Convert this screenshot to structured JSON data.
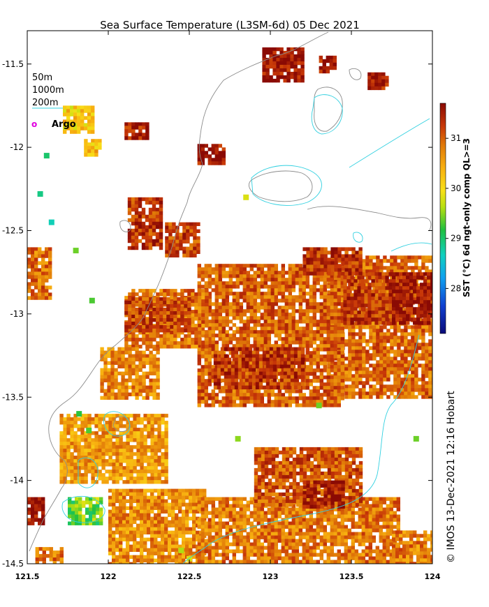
{
  "title": "Sea Surface Temperature (L3SM-6d) 05 Dec 2021",
  "credit": "© IMOS 13-Dec-2021 12:16 Hobart",
  "legend": {
    "items": [
      {
        "label": "50m"
      },
      {
        "label": "1000m"
      },
      {
        "label": "200m",
        "color": "#30d0e0"
      }
    ],
    "argo_label": "Argo",
    "argo_color": "#e000e0"
  },
  "colors": {
    "coast": "#8a8a8a",
    "contour_200m": "#30d0e0",
    "argo": "#e000e0"
  },
  "chart_data": {
    "type": "heatmap",
    "title": "Sea Surface Temperature (L3SM-6d) 05 Dec 2021",
    "xlim": [
      121.5,
      124
    ],
    "ylim": [
      -14.5,
      -11.3
    ],
    "x_ticks": [
      {
        "value": 121.5,
        "label": "121.5"
      },
      {
        "value": 122,
        "label": "122"
      },
      {
        "value": 122.5,
        "label": "122.5"
      },
      {
        "value": 123,
        "label": "123"
      },
      {
        "value": 123.5,
        "label": "123.5"
      },
      {
        "value": 124,
        "label": "124"
      }
    ],
    "y_ticks": [
      {
        "value": -11.5,
        "label": "-11.5"
      },
      {
        "value": -12,
        "label": "-12"
      },
      {
        "value": -12.5,
        "label": "-12.5"
      },
      {
        "value": -13,
        "label": "-13"
      },
      {
        "value": -13.5,
        "label": "-13.5"
      },
      {
        "value": -14,
        "label": "-14"
      },
      {
        "value": -14.5,
        "label": "-14.5"
      }
    ],
    "colorbar": {
      "label": "SST (°C) 6d ngt-only comp QL>=3",
      "range": [
        27.1,
        31.7
      ],
      "ticks": [
        {
          "value": 28,
          "label": "28"
        },
        {
          "value": 29,
          "label": "29"
        },
        {
          "value": 30,
          "label": "30"
        },
        {
          "value": 31,
          "label": "31"
        }
      ]
    },
    "patches": [
      {
        "lon": [
          123.35,
          124.0
        ],
        "lat": [
          -13.5,
          -12.65
        ],
        "sst": 30.95
      },
      {
        "lon": [
          122.55,
          123.45
        ],
        "lat": [
          -13.55,
          -12.7
        ],
        "sst": 31.0
      },
      {
        "lon": [
          122.1,
          122.6
        ],
        "lat": [
          -13.2,
          -12.85
        ],
        "sst": 30.9
      },
      {
        "lon": [
          121.95,
          122.3
        ],
        "lat": [
          -13.5,
          -13.2
        ],
        "sst": 30.75
      },
      {
        "lon": [
          122.1,
          122.5
        ],
        "lat": [
          -13.1,
          -12.9
        ],
        "sst": 31.2
      },
      {
        "lon": [
          122.65,
          123.2
        ],
        "lat": [
          -13.45,
          -13.2
        ],
        "sst": 31.3
      },
      {
        "lon": [
          123.45,
          123.75
        ],
        "lat": [
          -13.05,
          -12.75
        ],
        "sst": 31.3
      },
      {
        "lon": [
          123.75,
          124.0
        ],
        "lat": [
          -13.05,
          -12.75
        ],
        "sst": 31.6
      },
      {
        "lon": [
          121.7,
          122.35
        ],
        "lat": [
          -14.0,
          -13.6
        ],
        "sst": 30.6
      },
      {
        "lon": [
          122.0,
          122.6
        ],
        "lat": [
          -14.5,
          -14.05
        ],
        "sst": 30.7
      },
      {
        "lon": [
          122.55,
          123.8
        ],
        "lat": [
          -14.5,
          -14.1
        ],
        "sst": 30.85
      },
      {
        "lon": [
          123.75,
          124.0
        ],
        "lat": [
          -14.5,
          -14.3
        ],
        "sst": 30.8
      },
      {
        "lon": [
          122.9,
          123.55
        ],
        "lat": [
          -14.15,
          -13.8
        ],
        "sst": 31.1
      },
      {
        "lon": [
          123.2,
          123.45
        ],
        "lat": [
          -14.15,
          -14.0
        ],
        "sst": 31.45
      },
      {
        "lon": [
          121.75,
          121.95
        ],
        "lat": [
          -14.25,
          -14.1
        ],
        "sst": 29.4
      },
      {
        "lon": [
          121.5,
          121.6
        ],
        "lat": [
          -14.25,
          -14.1
        ],
        "sst": 31.6
      },
      {
        "lon": [
          121.72,
          121.9
        ],
        "lat": [
          -11.9,
          -11.75
        ],
        "sst": 30.15
      },
      {
        "lon": [
          121.85,
          121.95
        ],
        "lat": [
          -12.05,
          -11.95
        ],
        "sst": 30.3
      },
      {
        "lon": [
          122.12,
          122.32
        ],
        "lat": [
          -12.6,
          -12.3
        ],
        "sst": 31.3
      },
      {
        "lon": [
          121.5,
          121.65
        ],
        "lat": [
          -12.9,
          -12.6
        ],
        "sst": 30.9
      },
      {
        "lon": [
          122.35,
          122.55
        ],
        "lat": [
          -12.65,
          -12.45
        ],
        "sst": 31.2
      },
      {
        "lon": [
          122.55,
          122.72
        ],
        "lat": [
          -12.1,
          -11.98
        ],
        "sst": 31.6
      },
      {
        "lon": [
          122.95,
          123.2
        ],
        "lat": [
          -11.6,
          -11.4
        ],
        "sst": 31.6
      },
      {
        "lon": [
          123.3,
          123.4
        ],
        "lat": [
          -11.55,
          -11.45
        ],
        "sst": 31.5
      },
      {
        "lon": [
          123.6,
          123.72
        ],
        "lat": [
          -11.65,
          -11.55
        ],
        "sst": 31.5
      },
      {
        "lon": [
          123.2,
          123.55
        ],
        "lat": [
          -12.75,
          -12.6
        ],
        "sst": 31.3
      },
      {
        "lon": [
          122.1,
          122.25
        ],
        "lat": [
          -11.95,
          -11.85
        ],
        "sst": 31.5
      },
      {
        "lon": [
          121.55,
          121.72
        ],
        "lat": [
          -14.5,
          -14.4
        ],
        "sst": 30.9
      }
    ],
    "speckles": [
      {
        "lon": 121.65,
        "lat": -12.45,
        "sst": 28.7
      },
      {
        "lon": 121.58,
        "lat": -12.28,
        "sst": 28.9
      },
      {
        "lon": 121.88,
        "lat": -13.7,
        "sst": 29.3
      },
      {
        "lon": 121.82,
        "lat": -13.6,
        "sst": 29.2
      },
      {
        "lon": 123.3,
        "lat": -13.55,
        "sst": 29.4
      },
      {
        "lon": 123.9,
        "lat": -13.75,
        "sst": 29.4
      },
      {
        "lon": 122.8,
        "lat": -13.75,
        "sst": 29.5
      },
      {
        "lon": 122.45,
        "lat": -14.42,
        "sst": 29.6
      },
      {
        "lon": 122.5,
        "lat": -14.47,
        "sst": 29.8
      },
      {
        "lon": 121.9,
        "lat": -12.92,
        "sst": 29.3
      },
      {
        "lon": 121.8,
        "lat": -12.62,
        "sst": 29.4
      },
      {
        "lon": 122.85,
        "lat": -12.3,
        "sst": 29.8
      },
      {
        "lon": 121.62,
        "lat": -12.05,
        "sst": 29.0
      }
    ],
    "argo": []
  }
}
